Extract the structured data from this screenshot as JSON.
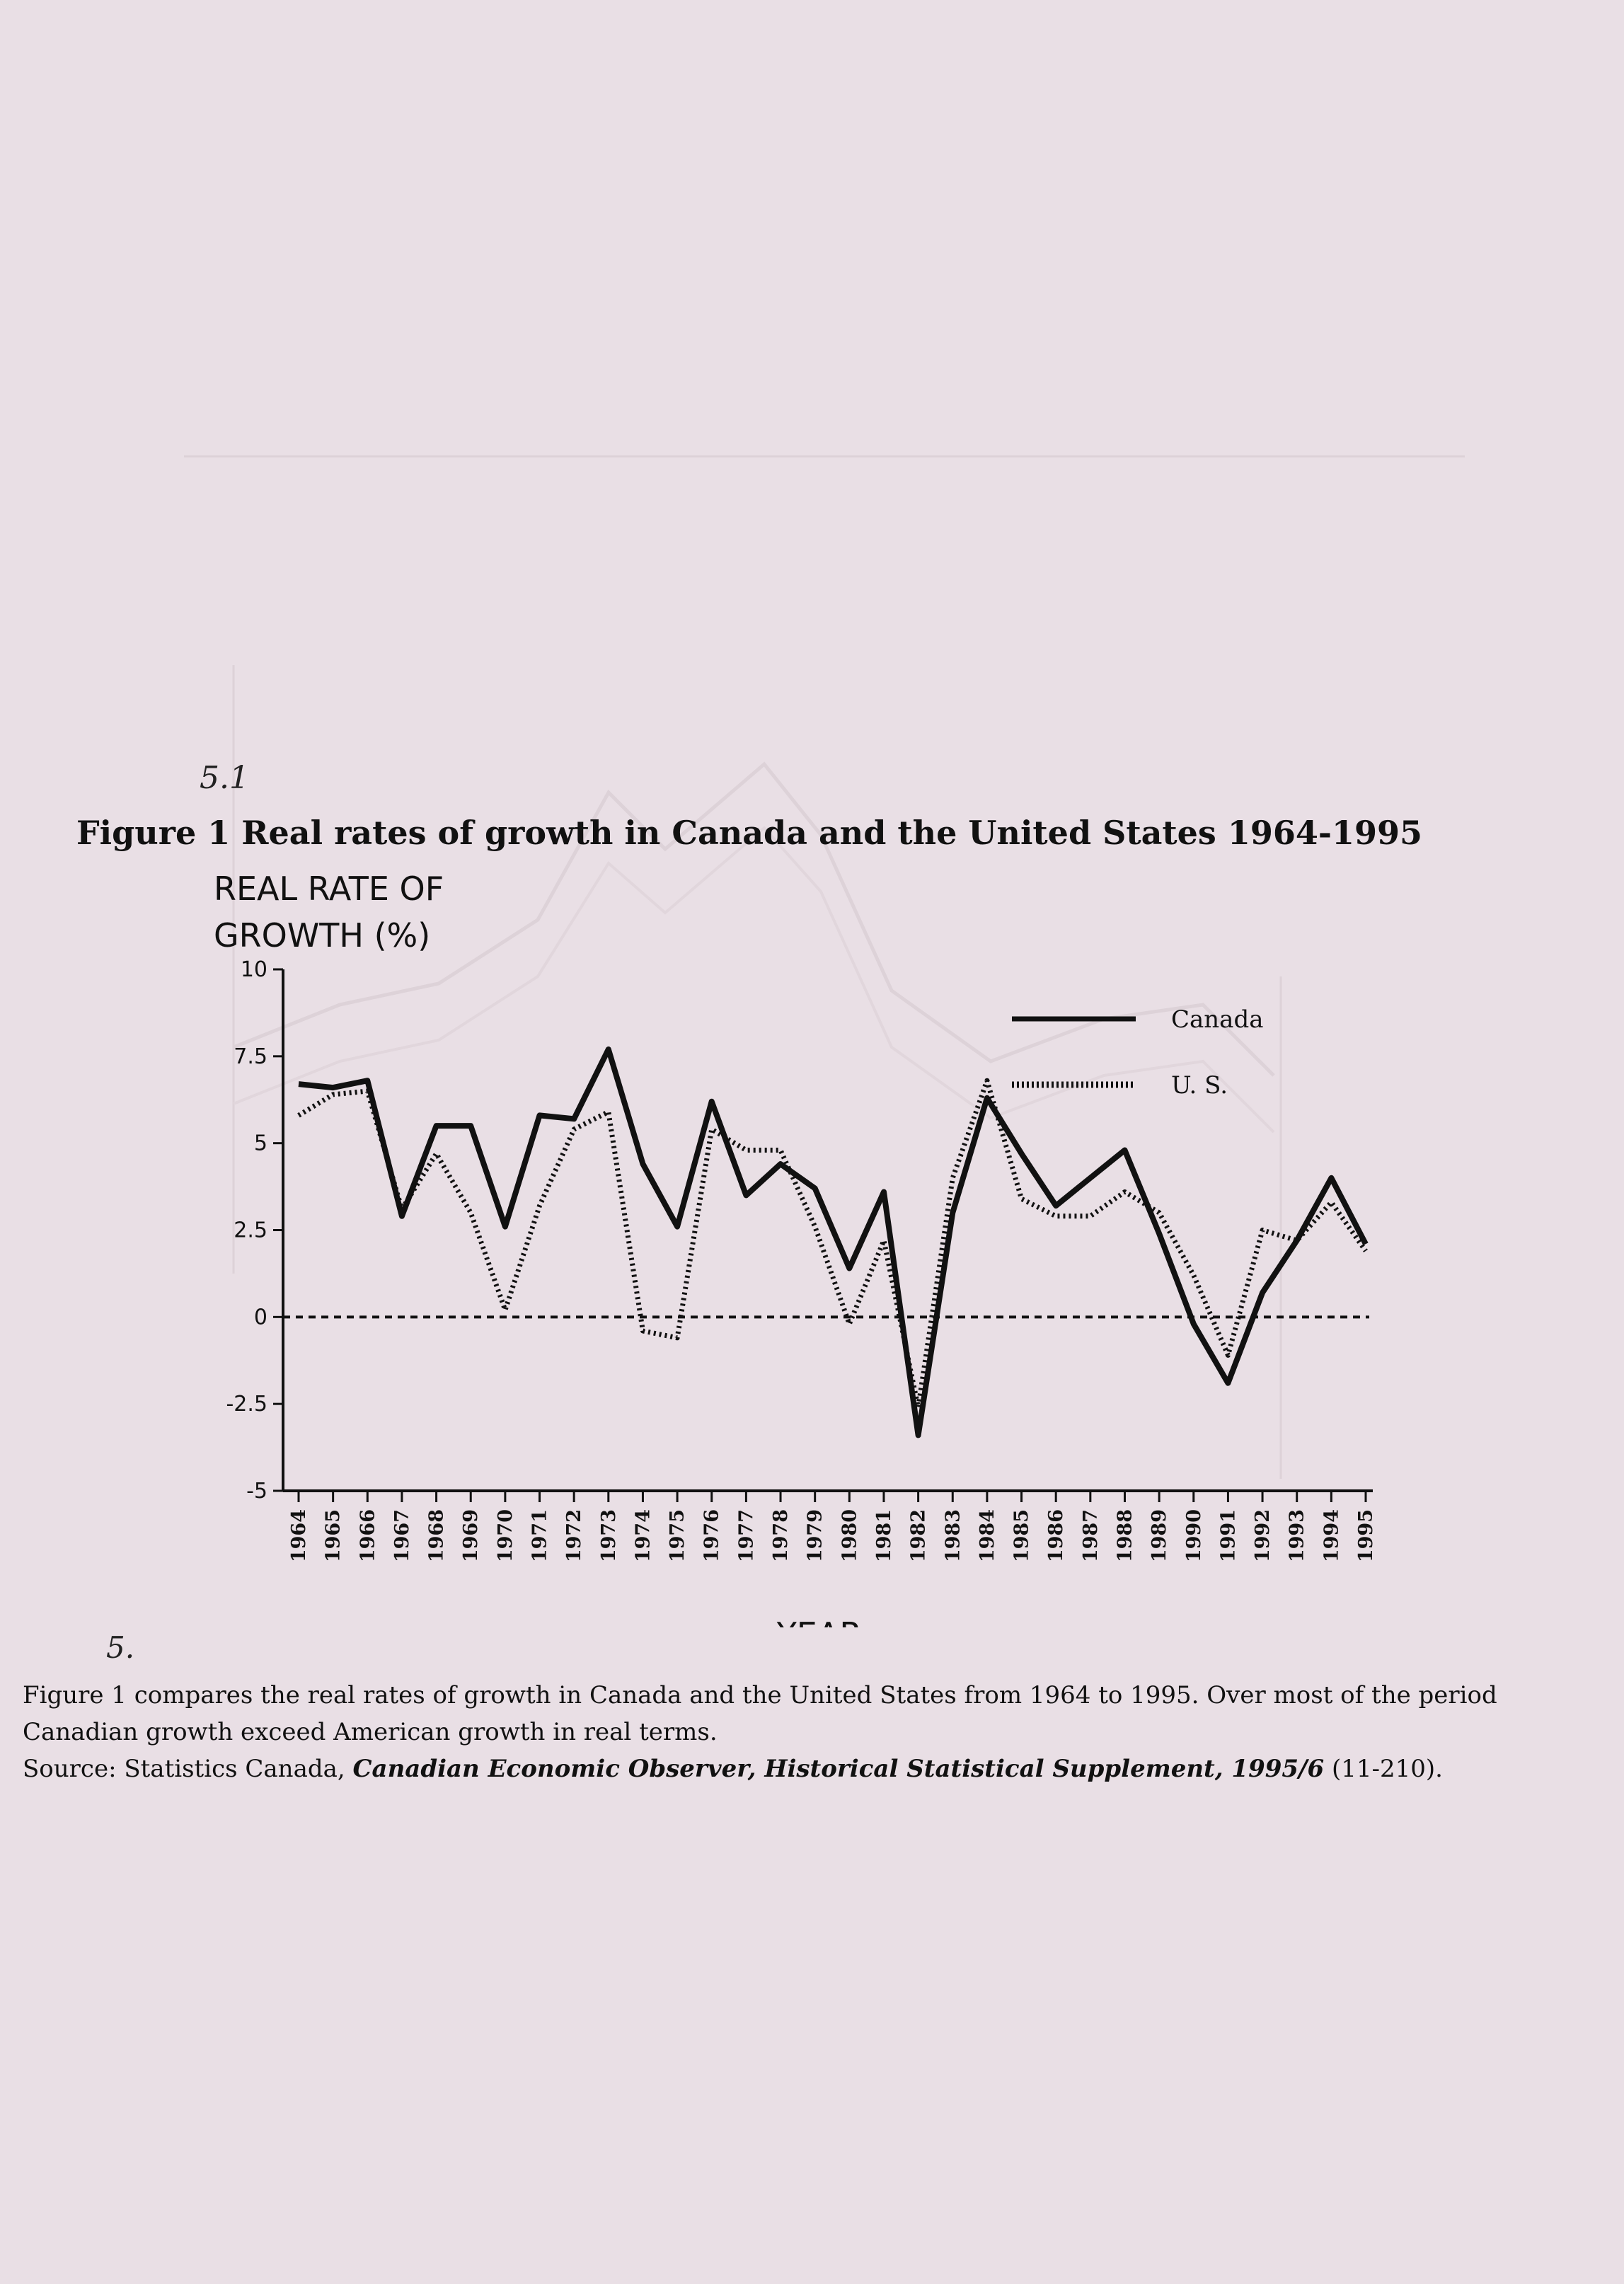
{
  "figure": {
    "title": "Figure 1 Real rates of growth in Canada and the United States 1964-1995",
    "hand_note_title": "5.1",
    "hand_note_caption": "5.",
    "caption_line1": "Figure 1 compares the real rates of growth in Canada and the United States from 1964 to 1995. Over most of the period Canadian growth exceed American growth in real terms.",
    "source_prefix": "Source: Statistics Canada, ",
    "source_italic": "Canadian Economic Observer, Historical Statistical Supplement, 1995/6",
    "source_suffix": " (11-210)."
  },
  "chart_data": {
    "type": "line",
    "ylabel_line1": "REAL RATE OF",
    "ylabel_line2": "GROWTH (%)",
    "xlabel": "YEAR",
    "ylim": [
      -5,
      10
    ],
    "yticks": [
      10,
      7.5,
      5,
      2.5,
      0,
      -2.5,
      -5
    ],
    "ytick_labels": [
      "10",
      "7.5",
      "5",
      "2.5",
      "0",
      "-2.5",
      "-5"
    ],
    "x": [
      "1964",
      "1965",
      "1966",
      "1967",
      "1968",
      "1969",
      "1970",
      "1971",
      "1972",
      "1973",
      "1974",
      "1975",
      "1976",
      "1977",
      "1978",
      "1979",
      "1980",
      "1981",
      "1982",
      "1983",
      "1984",
      "1985",
      "1986",
      "1987",
      "1988",
      "1989",
      "1990",
      "1991",
      "1992",
      "1993",
      "1994",
      "1995"
    ],
    "zero_line": "dashed",
    "legend_position": "top-right",
    "series": [
      {
        "name": "Canada",
        "style": "solid",
        "color": "#111111",
        "values": [
          6.7,
          6.6,
          6.8,
          2.9,
          5.5,
          5.5,
          2.6,
          5.8,
          5.7,
          7.7,
          4.4,
          2.6,
          6.2,
          3.5,
          4.4,
          3.7,
          1.4,
          3.6,
          -3.4,
          3.0,
          6.3,
          4.7,
          3.2,
          4.0,
          4.8,
          2.4,
          -0.2,
          -1.9,
          0.7,
          2.2,
          4.0,
          2.1
        ]
      },
      {
        "name": "U. S.",
        "style": "dotted",
        "color": "#111111",
        "values": [
          5.8,
          6.4,
          6.5,
          3.1,
          4.7,
          3.0,
          0.2,
          3.2,
          5.4,
          5.9,
          -0.4,
          -0.6,
          5.4,
          4.8,
          4.8,
          2.6,
          -0.2,
          2.2,
          -2.6,
          4.0,
          6.8,
          3.4,
          2.9,
          2.9,
          3.6,
          3.0,
          1.2,
          -1.1,
          2.5,
          2.2,
          3.3,
          1.9
        ]
      }
    ]
  }
}
